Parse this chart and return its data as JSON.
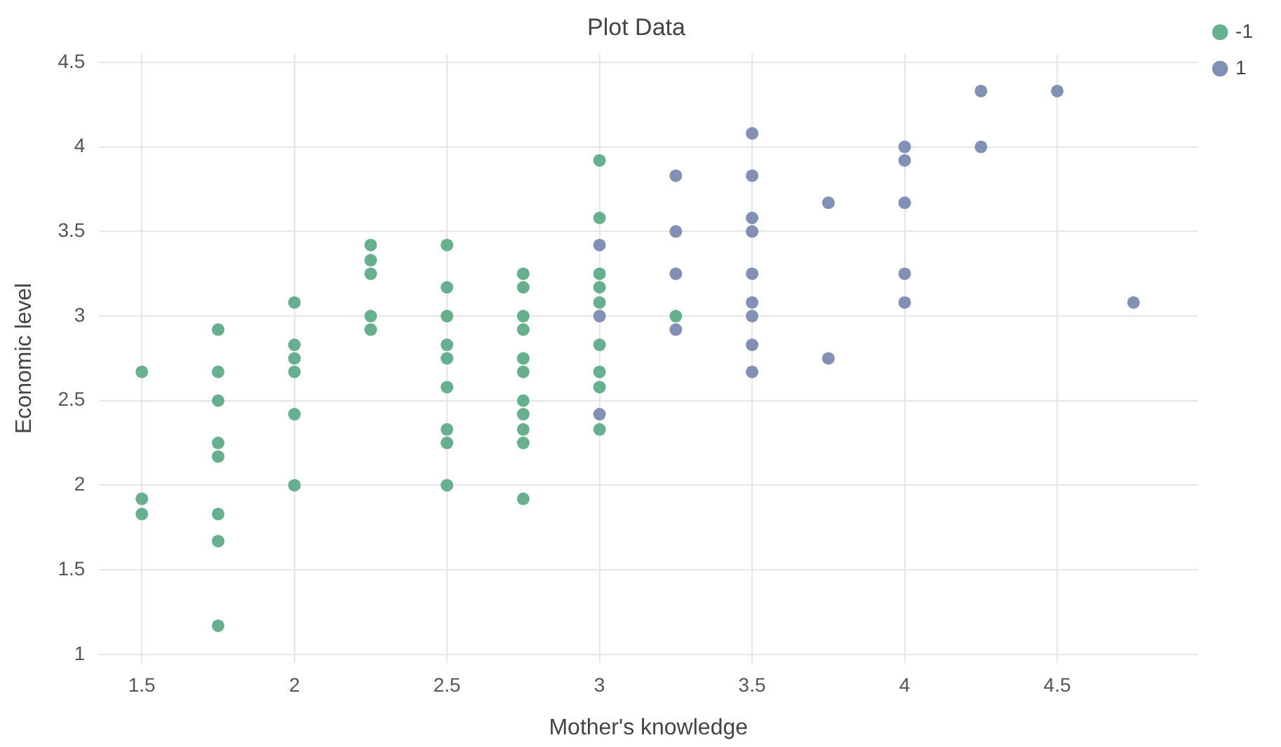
{
  "chart_data": {
    "type": "scatter",
    "title": "Plot Data",
    "xlabel": "Mother's knowledge",
    "ylabel": "Economic level",
    "xlim": [
      1.36,
      4.96
    ],
    "xticks": [
      1.5,
      2,
      2.5,
      3,
      3.5,
      4,
      4.5
    ],
    "ylim": [
      0.95,
      4.55
    ],
    "yticks": [
      1,
      1.5,
      2,
      2.5,
      3,
      3.5,
      4,
      4.5
    ],
    "grid": true,
    "legend": "top right",
    "marker": "circle",
    "series": [
      {
        "name": "-1",
        "color": "#66b08f",
        "x": [
          1.5,
          1.5,
          1.5,
          1.75,
          1.75,
          1.75,
          1.75,
          1.75,
          1.75,
          1.75,
          1.75,
          2,
          2,
          2,
          2,
          2,
          2,
          2.25,
          2.25,
          2.25,
          2.25,
          2.25,
          2.5,
          2.5,
          2.5,
          2.5,
          2.5,
          2.5,
          2.5,
          2.5,
          2.5,
          2.75,
          2.75,
          2.75,
          2.75,
          2.75,
          2.75,
          2.75,
          2.75,
          2.75,
          2.75,
          2.75,
          3,
          3,
          3,
          3,
          3,
          3,
          3,
          3,
          3,
          3.25
        ],
        "values": [
          2.67,
          1.92,
          1.83,
          2.92,
          2.67,
          2.5,
          2.25,
          2.17,
          1.83,
          1.67,
          1.17,
          3.08,
          2.83,
          2.75,
          2.67,
          2.42,
          2,
          3.42,
          3.33,
          3.25,
          3,
          2.92,
          3.42,
          3.17,
          3,
          2.83,
          2.75,
          2.58,
          2.33,
          2.25,
          2,
          3.25,
          3.17,
          3,
          2.92,
          2.75,
          2.67,
          2.5,
          2.42,
          2.33,
          2.25,
          1.92,
          3.92,
          3.58,
          3.25,
          3.17,
          3.08,
          2.83,
          2.67,
          2.58,
          2.33,
          3
        ]
      },
      {
        "name": "1",
        "color": "#8390b5",
        "x": [
          3,
          3,
          3,
          3.25,
          3.25,
          3.25,
          3.25,
          3.5,
          3.5,
          3.5,
          3.5,
          3.5,
          3.5,
          3.5,
          3.5,
          3.5,
          3.75,
          3.75,
          4,
          4,
          4,
          4,
          4,
          4.25,
          4.25,
          4.5,
          4.75
        ],
        "values": [
          3.42,
          3,
          2.42,
          3.83,
          3.5,
          3.25,
          2.92,
          4.08,
          3.83,
          3.58,
          3.5,
          3.25,
          3.08,
          3,
          2.83,
          2.67,
          3.67,
          2.75,
          4,
          3.92,
          3.67,
          3.25,
          3.08,
          4.33,
          4,
          4.33,
          3.08
        ]
      }
    ]
  }
}
